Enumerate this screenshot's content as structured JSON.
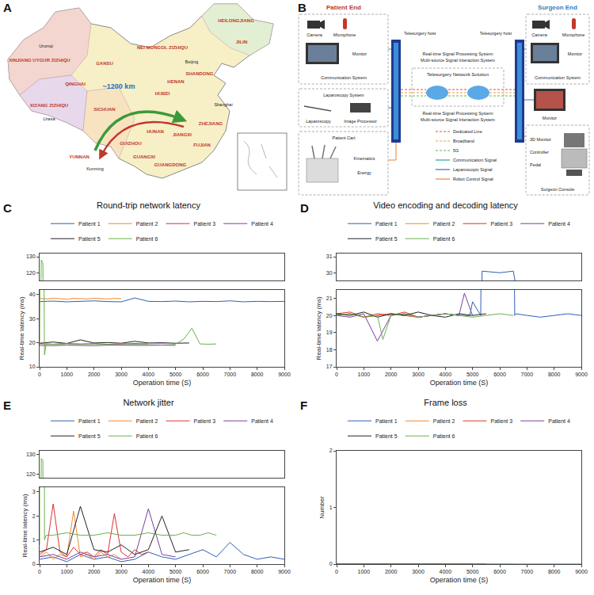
{
  "map": {
    "panel": "A",
    "distance_label": "~1200 km",
    "provinces": [
      "XINJIANG UYGUR ZIZHIQU",
      "XIZANG ZIZHIQU",
      "QINGHAI",
      "GANSU",
      "NEI MONGOL ZIZHIQU",
      "HEILONGJIANG",
      "JILIN",
      "SICHUAN",
      "YUNNAN",
      "GUIZHOU",
      "GUANGXI",
      "GUANGDONG",
      "HUNAN",
      "HUBEI",
      "HENAN",
      "SHANDONG",
      "JIANGXI",
      "FUJIAN",
      "ZHEJIANG"
    ],
    "cities": [
      "Urumqi",
      "Lhasa",
      "Beijing",
      "Kunming",
      "Shanghai"
    ]
  },
  "diagram": {
    "panel": "B",
    "patient_end": "Patient End",
    "surgeon_end": "Surgeon End",
    "communication_system": "Communication System",
    "camera": "Camera",
    "microphone": "Microphone",
    "monitor": "Monitor",
    "laparoscopy_system": "Laparoscopy System",
    "laparoscopy": "Laparoscopy",
    "image_processor": "Image Processor",
    "patient_cart": "Patient Cart",
    "kinematics": "Kinematics",
    "energy": "Energy",
    "telesurgery_host": "Telesurgery host",
    "network_solution": "Telesurgery Network Solution",
    "signal_notes": [
      "Real-time Signal Processing System",
      "Multi-source Signal Interaction System"
    ],
    "surgeon_console": "Surgeon Console",
    "monitor_3d": "3D Monitor",
    "controller": "Controller",
    "pedal": "Pedal",
    "link_legend": [
      {
        "label": "Dedicated Line",
        "color": "#d9534f",
        "line_style": "dashed"
      },
      {
        "label": "Broadband",
        "color": "#f0a030",
        "line_style": "dashed"
      },
      {
        "label": "5G",
        "color": "#5cb85c",
        "line_style": "dashed"
      },
      {
        "label": "Communication Signal",
        "color": "#2aa198",
        "line_style": "solid"
      },
      {
        "label": "Laparoscopic Signal",
        "color": "#3a6fc9",
        "line_style": "solid"
      },
      {
        "label": "Robot Control Signal",
        "color": "#e8843a",
        "line_style": "solid"
      }
    ]
  },
  "chart_data": [
    {
      "panel": "C",
      "type": "line",
      "title": "Round-trip network latency",
      "x_label": "Operation time (S)",
      "y_label": "Real-time latency (ms)",
      "xlim": [
        0,
        9000
      ],
      "xticks": [
        0,
        1000,
        2000,
        3000,
        4000,
        5000,
        6000,
        7000,
        8000,
        9000
      ],
      "ylim": [
        [
          10,
          42
        ],
        [
          115,
          132
        ]
      ],
      "yticks": [
        [
          10,
          20,
          30,
          40
        ],
        [
          120,
          130
        ]
      ],
      "grid": false,
      "legend": "top",
      "series": [
        {
          "name": "Patient 1",
          "color": "#2e5fb8",
          "x": [
            0,
            500,
            1000,
            1500,
            2000,
            2500,
            3000,
            3500,
            4000,
            4500,
            5000,
            5500,
            6000,
            6500,
            7000,
            7500,
            8000,
            8500,
            9000
          ],
          "values": [
            37.1,
            37.3,
            37.0,
            37.2,
            37.4,
            37.1,
            37.0,
            38.6,
            37.2,
            37.1,
            37.3,
            37.0,
            37.2,
            37.1,
            37.4,
            37.0,
            37.2,
            37.1,
            37.2
          ]
        },
        {
          "name": "Patient 2",
          "color": "#f08a2c",
          "x": [
            0,
            250,
            500,
            750,
            1000,
            1250,
            1500,
            1750,
            2000,
            2250,
            2500,
            2750,
            3000
          ],
          "values": [
            38.4,
            38.2,
            38.5,
            38.3,
            38.1,
            38.4,
            38.3,
            38.2,
            38.5,
            38.3,
            38.2,
            38.4,
            38.3
          ]
        },
        {
          "name": "Patient 3",
          "color": "#e0312f",
          "x": [
            0,
            500,
            1000,
            1500,
            2000,
            2500,
            3000,
            3500,
            4000
          ],
          "values": [
            19.6,
            19.4,
            19.7,
            19.5,
            19.6,
            19.4,
            19.5,
            19.7,
            19.5
          ]
        },
        {
          "name": "Patient 4",
          "color": "#7b3fa0",
          "x": [
            0,
            500,
            1000,
            1500,
            2000,
            2500,
            3000,
            3500,
            4000,
            4500,
            5000
          ],
          "values": [
            18.9,
            18.8,
            19.0,
            18.9,
            18.8,
            19.0,
            18.9,
            18.8,
            18.9,
            19.0,
            18.9
          ]
        },
        {
          "name": "Patient 5",
          "color": "#222222",
          "x": [
            0,
            500,
            1000,
            1500,
            2000,
            2500,
            3000,
            3500,
            4000,
            4500,
            5000,
            5500
          ],
          "values": [
            19.8,
            20.3,
            19.7,
            21.2,
            19.9,
            20.1,
            19.8,
            20.6,
            19.9,
            20.0,
            19.8,
            19.9
          ]
        },
        {
          "name": "Patient 6",
          "color": "#6ab04c",
          "x": [
            0,
            60,
            120,
            180,
            240,
            500,
            1000,
            1500,
            2000,
            2500,
            3000,
            3500,
            4000,
            4500,
            5000,
            5300,
            5600,
            5900,
            6200,
            6500
          ],
          "values": [
            19.2,
            128,
            126,
            15,
            19.5,
            19.3,
            19.6,
            19.4,
            19.5,
            19.3,
            19.6,
            19.4,
            19.5,
            19.7,
            19.4,
            21.5,
            26,
            19.5,
            19.4,
            19.5
          ]
        }
      ]
    },
    {
      "panel": "D",
      "type": "line",
      "title": "Video encoding and decoding latency",
      "x_label": "Operation time (S)",
      "y_label": "Real-time latency (ms)",
      "xlim": [
        0,
        9000
      ],
      "xticks": [
        0,
        1000,
        2000,
        3000,
        4000,
        5000,
        6000,
        7000,
        8000,
        9000
      ],
      "ylim": [
        [
          17,
          21.5
        ],
        [
          29.5,
          31.2
        ]
      ],
      "yticks": [
        [
          17,
          18,
          19,
          20,
          21
        ],
        [
          30,
          31
        ]
      ],
      "grid": false,
      "legend": "top",
      "series": [
        {
          "name": "Patient 1",
          "color": "#2e5fb8",
          "x": [
            0,
            500,
            1000,
            1500,
            2000,
            2500,
            3000,
            3500,
            4000,
            4500,
            4900,
            5000,
            5300,
            5350,
            6000,
            6500,
            6550,
            6600,
            7000,
            7500,
            8000,
            8500,
            9000
          ],
          "values": [
            20.0,
            20.1,
            19.9,
            20.0,
            20.1,
            20.0,
            19.9,
            20.0,
            20.1,
            20.0,
            20.0,
            20.8,
            20.0,
            30.1,
            30.0,
            30.1,
            20.0,
            20.1,
            20.0,
            19.9,
            20.0,
            20.1,
            20.0
          ]
        },
        {
          "name": "Patient 2",
          "color": "#f08a2c",
          "x": [
            0,
            500,
            1000,
            1500,
            2000,
            2500,
            3000
          ],
          "values": [
            20.0,
            20.1,
            19.9,
            20.0,
            20.1,
            20.0,
            19.9
          ]
        },
        {
          "name": "Patient 3",
          "color": "#e0312f",
          "x": [
            0,
            500,
            1000,
            1500,
            2000,
            2500,
            3000,
            3500,
            4000
          ],
          "values": [
            20.1,
            20.2,
            19.9,
            20.1,
            20.0,
            20.2,
            19.9,
            20.0,
            20.1
          ]
        },
        {
          "name": "Patient 4",
          "color": "#7b3fa0",
          "x": [
            0,
            500,
            1000,
            1500,
            2000,
            2500,
            3000,
            3500,
            4000,
            4500,
            4700,
            5000
          ],
          "values": [
            20.0,
            19.9,
            20.1,
            18.5,
            20.0,
            20.1,
            19.9,
            20.0,
            20.1,
            20.0,
            21.3,
            20.0
          ]
        },
        {
          "name": "Patient 5",
          "color": "#222222",
          "x": [
            0,
            500,
            1000,
            1500,
            2000,
            2500,
            3000,
            3500,
            4000,
            4500,
            5000,
            5500
          ],
          "values": [
            20.1,
            20.0,
            20.2,
            19.9,
            20.1,
            20.0,
            20.2,
            20.0,
            19.9,
            20.1,
            20.0,
            20.1
          ]
        },
        {
          "name": "Patient 6",
          "color": "#6ab04c",
          "x": [
            0,
            500,
            1000,
            1500,
            1700,
            2000,
            2500,
            3000,
            3500,
            4000,
            4500,
            5000,
            5500,
            6000,
            6500
          ],
          "values": [
            20.0,
            20.1,
            19.9,
            20.0,
            18.6,
            20.0,
            20.1,
            19.9,
            20.0,
            20.1,
            20.0,
            19.9,
            20.0,
            20.1,
            20.0
          ]
        }
      ]
    },
    {
      "panel": "E",
      "type": "line",
      "title": "Network jitter",
      "x_label": "Operation time (S)",
      "y_label": "Real-time latency (ms)",
      "xlim": [
        0,
        9000
      ],
      "xticks": [
        0,
        1000,
        2000,
        3000,
        4000,
        5000,
        6000,
        7000,
        8000,
        9000
      ],
      "ylim": [
        [
          0,
          3.2
        ],
        [
          118,
          132
        ]
      ],
      "yticks": [
        [
          0,
          1,
          2,
          3
        ],
        [
          120,
          130
        ]
      ],
      "grid": false,
      "legend": "top",
      "series": [
        {
          "name": "Patient 1",
          "color": "#2e5fb8",
          "x": [
            0,
            500,
            1000,
            1500,
            2000,
            2500,
            3000,
            3500,
            4000,
            4500,
            5000,
            5500,
            6000,
            6500,
            7000,
            7500,
            8000,
            8500,
            9000
          ],
          "values": [
            0.2,
            0.3,
            0.1,
            0.4,
            0.2,
            0.3,
            0.1,
            0.2,
            0.5,
            0.3,
            0.2,
            0.4,
            0.6,
            0.3,
            0.9,
            0.4,
            0.2,
            0.3,
            0.2
          ]
        },
        {
          "name": "Patient 2",
          "color": "#f08a2c",
          "x": [
            0,
            250,
            500,
            750,
            1000,
            1250,
            1500,
            1750,
            2000,
            2250,
            2500,
            2750,
            3000
          ],
          "values": [
            0.3,
            0.5,
            0.2,
            0.4,
            0.3,
            2.2,
            0.3,
            0.4,
            0.2,
            0.5,
            0.3,
            0.4,
            0.2
          ]
        },
        {
          "name": "Patient 3",
          "color": "#e0312f",
          "x": [
            0,
            250,
            500,
            750,
            1000,
            1250,
            1500,
            1750,
            2000,
            2250,
            2500,
            2750,
            3000,
            3250,
            3500,
            3750,
            4000
          ],
          "values": [
            0.4,
            0.6,
            2.5,
            0.5,
            0.3,
            0.7,
            0.4,
            0.5,
            0.3,
            0.6,
            0.4,
            2.1,
            0.5,
            0.3,
            0.6,
            0.4,
            0.5
          ]
        },
        {
          "name": "Patient 4",
          "color": "#7b3fa0",
          "x": [
            0,
            500,
            1000,
            1500,
            2000,
            2500,
            3000,
            3500,
            4000,
            4500,
            5000
          ],
          "values": [
            0.3,
            0.4,
            0.2,
            0.5,
            0.3,
            0.4,
            0.2,
            0.3,
            2.3,
            0.4,
            0.3
          ]
        },
        {
          "name": "Patient 5",
          "color": "#222222",
          "x": [
            0,
            500,
            1000,
            1500,
            2000,
            2500,
            3000,
            3500,
            4000,
            4500,
            5000,
            5500
          ],
          "values": [
            0.5,
            0.7,
            0.4,
            2.4,
            0.6,
            0.5,
            0.8,
            0.4,
            0.6,
            2.0,
            0.5,
            0.6
          ]
        },
        {
          "name": "Patient 6",
          "color": "#6ab04c",
          "x": [
            0,
            60,
            120,
            180,
            240,
            500,
            1000,
            1500,
            2000,
            2500,
            3000,
            3500,
            4000,
            4500,
            5000,
            5300,
            5600,
            5900,
            6200,
            6500
          ],
          "values": [
            0.8,
            128,
            127,
            1.0,
            1.2,
            1.2,
            1.3,
            1.2,
            1.2,
            1.3,
            1.2,
            1.2,
            1.3,
            1.2,
            1.2,
            1.3,
            1.2,
            1.2,
            1.3,
            1.2
          ]
        }
      ]
    },
    {
      "panel": "F",
      "type": "line",
      "title": "Frame loss",
      "x_label": "Operation time (S)",
      "y_label": "Number",
      "xlim": [
        0,
        9000
      ],
      "xticks": [
        0,
        1000,
        2000,
        3000,
        4000,
        5000,
        6000,
        7000,
        8000,
        9000
      ],
      "ylim": [
        0,
        2
      ],
      "yticks": [
        0,
        1,
        2
      ],
      "grid": false,
      "legend": "top",
      "series": [
        {
          "name": "Patient 1",
          "color": "#2e5fb8",
          "x": [
            0,
            9000
          ],
          "values": [
            0,
            0
          ]
        },
        {
          "name": "Patient 2",
          "color": "#f08a2c",
          "x": [
            0,
            3000
          ],
          "values": [
            0,
            0
          ]
        },
        {
          "name": "Patient 3",
          "color": "#e0312f",
          "x": [
            0,
            4000
          ],
          "values": [
            0,
            0
          ]
        },
        {
          "name": "Patient 4",
          "color": "#7b3fa0",
          "x": [
            0,
            5000
          ],
          "values": [
            0,
            0
          ]
        },
        {
          "name": "Patient 5",
          "color": "#222222",
          "x": [
            0,
            5500
          ],
          "values": [
            0,
            0
          ]
        },
        {
          "name": "Patient 6",
          "color": "#6ab04c",
          "x": [
            0,
            6500
          ],
          "values": [
            0,
            0
          ]
        }
      ]
    }
  ]
}
